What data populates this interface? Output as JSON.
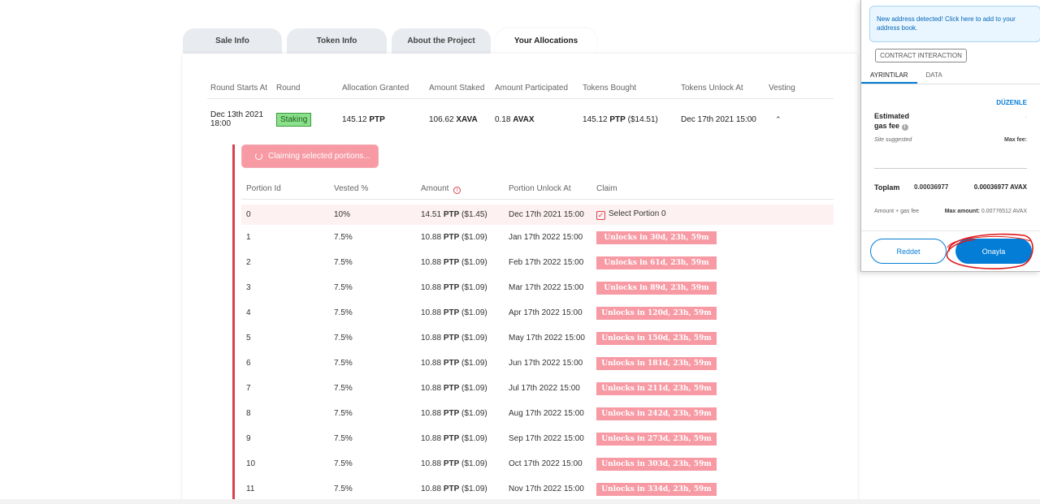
{
  "tabs": [
    {
      "label": "Sale Info"
    },
    {
      "label": "Token Info"
    },
    {
      "label": "About the Project"
    },
    {
      "label": "Your Allocations"
    }
  ],
  "allocation": {
    "headers": [
      "Round Starts At",
      "Round",
      "Allocation Granted",
      "Amount Staked",
      "Amount Participated",
      "Tokens Bought",
      "Tokens Unlock At",
      "Vesting"
    ],
    "row": {
      "round_starts_line1": "Dec 13th 2021",
      "round_starts_line2": "18:00",
      "round": "Staking",
      "granted_value": "145.12",
      "granted_unit": "PTP",
      "staked_value": "106.62",
      "staked_unit": "XAVA",
      "participated_value": "0.18",
      "participated_unit": "AVAX",
      "bought_value": "145.12",
      "bought_unit": "PTP",
      "bought_usd": "($14.51)",
      "unlock_at": "Dec 17th 2021 15:00",
      "vesting_icon": "chevron-up-icon"
    }
  },
  "vesting": {
    "claim_button": "Claiming selected portions...",
    "headers": [
      "Portion Id",
      "Vested %",
      "Amount",
      "Portion Unlock At",
      "Claim"
    ],
    "portions": [
      {
        "id": "0",
        "vested": "10%",
        "amount": "14.51",
        "unit": "PTP",
        "usd": "($1.45)",
        "unlock": "Dec 17th 2021 15:00",
        "claim": "Select Portion 0"
      },
      {
        "id": "1",
        "vested": "7.5%",
        "amount": "10.88",
        "unit": "PTP",
        "usd": "($1.09)",
        "unlock": "Jan 17th 2022 15:00",
        "claim": "Unlocks in 30d, 23h, 59m"
      },
      {
        "id": "2",
        "vested": "7.5%",
        "amount": "10.88",
        "unit": "PTP",
        "usd": "($1.09)",
        "unlock": "Feb 17th 2022 15:00",
        "claim": "Unlocks in 61d, 23h, 59m"
      },
      {
        "id": "3",
        "vested": "7.5%",
        "amount": "10.88",
        "unit": "PTP",
        "usd": "($1.09)",
        "unlock": "Mar 17th 2022 15:00",
        "claim": "Unlocks in 89d, 23h, 59m"
      },
      {
        "id": "4",
        "vested": "7.5%",
        "amount": "10.88",
        "unit": "PTP",
        "usd": "($1.09)",
        "unlock": "Apr 17th 2022 15:00",
        "claim": "Unlocks in 120d, 23h, 59m"
      },
      {
        "id": "5",
        "vested": "7.5%",
        "amount": "10.88",
        "unit": "PTP",
        "usd": "($1.09)",
        "unlock": "May 17th 2022 15:00",
        "claim": "Unlocks in 150d, 23h, 59m"
      },
      {
        "id": "6",
        "vested": "7.5%",
        "amount": "10.88",
        "unit": "PTP",
        "usd": "($1.09)",
        "unlock": "Jun 17th 2022 15:00",
        "claim": "Unlocks in 181d, 23h, 59m"
      },
      {
        "id": "7",
        "vested": "7.5%",
        "amount": "10.88",
        "unit": "PTP",
        "usd": "($1.09)",
        "unlock": "Jul 17th 2022 15:00",
        "claim": "Unlocks in 211d, 23h, 59m"
      },
      {
        "id": "8",
        "vested": "7.5%",
        "amount": "10.88",
        "unit": "PTP",
        "usd": "($1.09)",
        "unlock": "Aug 17th 2022 15:00",
        "claim": "Unlocks in 242d, 23h, 59m"
      },
      {
        "id": "9",
        "vested": "7.5%",
        "amount": "10.88",
        "unit": "PTP",
        "usd": "($1.09)",
        "unlock": "Sep 17th 2022 15:00",
        "claim": "Unlocks in 273d, 23h, 59m"
      },
      {
        "id": "10",
        "vested": "7.5%",
        "amount": "10.88",
        "unit": "PTP",
        "usd": "($1.09)",
        "unlock": "Oct 17th 2022 15:00",
        "claim": "Unlocks in 303d, 23h, 59m"
      },
      {
        "id": "11",
        "vested": "7.5%",
        "amount": "10.88",
        "unit": "PTP",
        "usd": "($1.09)",
        "unlock": "Nov 17th 2022 15:00",
        "claim": "Unlocks in 334d, 23h, 59m"
      }
    ]
  },
  "wallet": {
    "alert": "New address detected! Click here to add to your address book.",
    "contract_label": "CONTRACT INTERACTION",
    "tabs": [
      "AYRINTILAR",
      "DATA"
    ],
    "edit": "DÜZENLE",
    "estimated_gas_fee": "Estimated gas fee",
    "site_suggested": "Site suggested",
    "max_fee_label": "Max fee:",
    "total_label": "Toplam",
    "total_value": "0.00036977",
    "total_value_avax": "0.00036977 AVAX",
    "amount_gas_fee": "Amount + gas fee",
    "max_amount_label": "Max amount:",
    "max_amount_value": "0.00776512 AVAX",
    "reject_button": "Reddet",
    "confirm_button": "Onayla"
  },
  "colors": {
    "accent_red": "#d9424c",
    "badge_pink": "#f79aa4",
    "wallet_blue": "#037dd6",
    "staking_green": "#8be08b"
  }
}
